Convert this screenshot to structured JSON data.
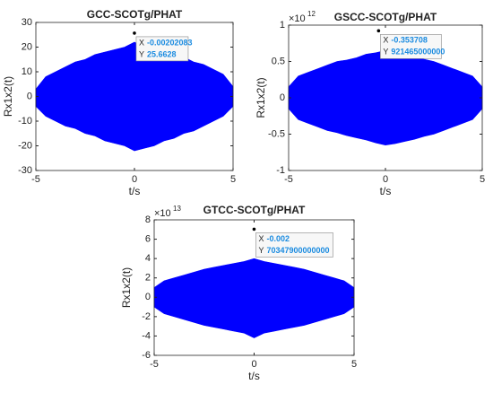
{
  "chart_data": [
    {
      "type": "band",
      "title": "GCC-SCOTg/PHAT",
      "xlabel": "t/s",
      "ylabel": "Rx1x2(t)",
      "color": "#0000ff",
      "xlim": [
        -5,
        5
      ],
      "xticks": [
        -5,
        0,
        5
      ],
      "ylim": [
        -30,
        30
      ],
      "yticks": [
        -30,
        -20,
        -10,
        0,
        10,
        20,
        30
      ],
      "x": [
        -5,
        -4.5,
        -4,
        -3.5,
        -3,
        -2.5,
        -2,
        -1.5,
        -1,
        -0.5,
        0,
        0.5,
        1,
        1.5,
        2,
        2.5,
        3,
        3.5,
        4,
        4.5,
        5
      ],
      "upper": [
        3,
        8,
        10,
        12,
        14,
        15,
        17,
        18,
        19,
        20,
        22,
        20,
        19,
        18,
        17,
        16,
        14,
        13,
        11,
        9,
        4
      ],
      "lower": [
        -4,
        -8,
        -10,
        -12,
        -13,
        -15,
        -16,
        -18,
        -19,
        -20,
        -22,
        -21,
        -20,
        -18,
        -17,
        -15,
        -14,
        -12,
        -10,
        -8,
        -4
      ],
      "datatip": {
        "x_label": "X",
        "y_label": "Y",
        "x": -0.00202083,
        "y": 25.6628
      }
    },
    {
      "type": "band",
      "title": "GSCC-SCOTg/PHAT",
      "xlabel": "t/s",
      "ylabel": "Rx1x2(t)",
      "color": "#0000ff",
      "exponent_label": {
        "base": "×10",
        "power": "12"
      },
      "xlim": [
        -5,
        5
      ],
      "xticks": [
        -5,
        0,
        5
      ],
      "ylim": [
        -1000000000000.0,
        1000000000000.0
      ],
      "yticks": [
        {
          "value": -1000000000000.0,
          "label": "-1"
        },
        {
          "value": -500000000000.0,
          "label": "-0.5"
        },
        0,
        {
          "value": 500000000000.0,
          "label": "0.5"
        },
        {
          "value": 1000000000000.0,
          "label": "1"
        }
      ],
      "x": [
        -5,
        -4.5,
        -4,
        -3.5,
        -3,
        -2.5,
        -2,
        -1.5,
        -1,
        -0.5,
        0,
        0.5,
        1,
        1.5,
        2,
        2.5,
        3,
        3.5,
        4,
        4.5,
        5
      ],
      "upper": [
        150000000000.0,
        300000000000.0,
        350000000000.0,
        400000000000.0,
        450000000000.0,
        500000000000.0,
        520000000000.0,
        550000000000.0,
        600000000000.0,
        620000000000.0,
        650000000000.0,
        620000000000.0,
        600000000000.0,
        560000000000.0,
        530000000000.0,
        500000000000.0,
        450000000000.0,
        400000000000.0,
        350000000000.0,
        300000000000.0,
        150000000000.0
      ],
      "lower": [
        -150000000000.0,
        -300000000000.0,
        -350000000000.0,
        -400000000000.0,
        -450000000000.0,
        -480000000000.0,
        -520000000000.0,
        -550000000000.0,
        -580000000000.0,
        -620000000000.0,
        -650000000000.0,
        -630000000000.0,
        -600000000000.0,
        -570000000000.0,
        -530000000000.0,
        -500000000000.0,
        -450000000000.0,
        -400000000000.0,
        -350000000000.0,
        -300000000000.0,
        -150000000000.0
      ],
      "datatip": {
        "x_label": "X",
        "y_label": "Y",
        "x": -0.353708,
        "y": 921465000000
      }
    },
    {
      "type": "band",
      "title": "GTCC-SCOTg/PHAT",
      "xlabel": "t/s",
      "ylabel": "Rx1x2(t)",
      "color": "#0000ff",
      "exponent_label": {
        "base": "×10",
        "power": "13"
      },
      "xlim": [
        -5,
        5
      ],
      "xticks": [
        -5,
        0,
        5
      ],
      "ylim": [
        -60000000000000.0,
        80000000000000.0
      ],
      "yticks": [
        {
          "value": -60000000000000.0,
          "label": "-6"
        },
        {
          "value": -40000000000000.0,
          "label": "-4"
        },
        {
          "value": -20000000000000.0,
          "label": "-2"
        },
        0,
        {
          "value": 20000000000000.0,
          "label": "2"
        },
        {
          "value": 40000000000000.0,
          "label": "4"
        },
        {
          "value": 60000000000000.0,
          "label": "6"
        },
        {
          "value": 80000000000000.0,
          "label": "8"
        }
      ],
      "x": [
        -5,
        -4.5,
        -4,
        -3.5,
        -3,
        -2.5,
        -2,
        -1.5,
        -1,
        -0.5,
        0,
        0.5,
        1,
        1.5,
        2,
        2.5,
        3,
        3.5,
        4,
        4.5,
        5
      ],
      "upper": [
        10000000000000.0,
        17000000000000.0,
        20000000000000.0,
        23000000000000.0,
        26000000000000.0,
        29000000000000.0,
        31000000000000.0,
        33000000000000.0,
        35000000000000.0,
        37000000000000.0,
        40000000000000.0,
        37000000000000.0,
        35000000000000.0,
        33000000000000.0,
        31000000000000.0,
        29000000000000.0,
        26000000000000.0,
        23000000000000.0,
        20000000000000.0,
        17000000000000.0,
        10000000000000.0
      ],
      "lower": [
        -10000000000000.0,
        -17000000000000.0,
        -20000000000000.0,
        -23000000000000.0,
        -26000000000000.0,
        -29000000000000.0,
        -31000000000000.0,
        -33000000000000.0,
        -35000000000000.0,
        -37000000000000.0,
        -42000000000000.0,
        -37000000000000.0,
        -35000000000000.0,
        -33000000000000.0,
        -31000000000000.0,
        -29000000000000.0,
        -26000000000000.0,
        -23000000000000.0,
        -20000000000000.0,
        -17000000000000.0,
        -10000000000000.0
      ],
      "datatip": {
        "x_label": "X",
        "y_label": "Y",
        "x": -0.002,
        "y": 70347900000000
      }
    }
  ]
}
